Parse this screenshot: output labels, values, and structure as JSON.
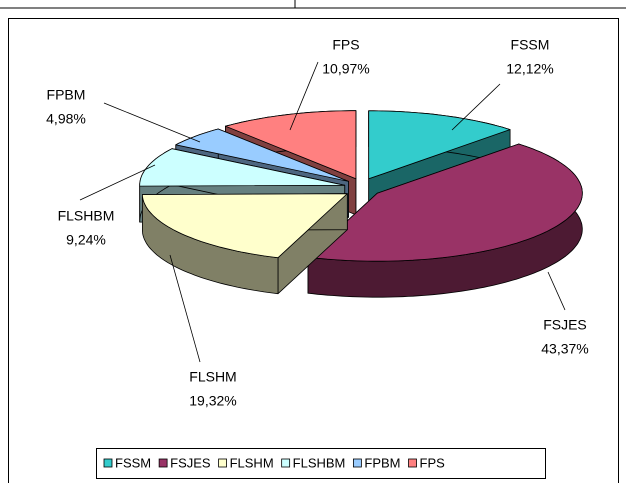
{
  "chart_data": {
    "type": "pie3d",
    "categories": [
      "FSSM",
      "FSJES",
      "FLSHM",
      "FLSHBM",
      "FPBM",
      "FPS"
    ],
    "series": [
      {
        "values": [
          12.12,
          43.37,
          19.32,
          9.24,
          4.98,
          10.97
        ],
        "value_labels": [
          "12,12%",
          "43,37%",
          "19,32%",
          "9,24%",
          "4,98%",
          "10,97%"
        ],
        "colors": [
          "#33CCCC",
          "#993366",
          "#FFFFCC",
          "#CCFFFF",
          "#99CCFF",
          "#FF8080"
        ]
      }
    ],
    "legend": "bottom"
  }
}
